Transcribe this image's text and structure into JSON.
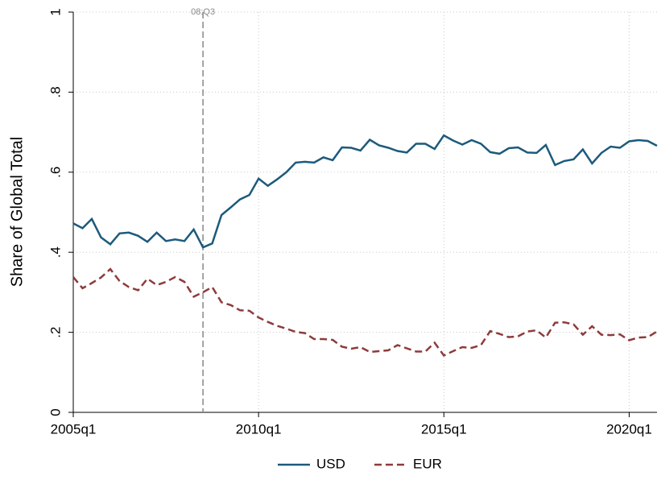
{
  "chart_data": {
    "type": "line",
    "y_label": "Share of Global Total",
    "x": [
      180,
      181,
      182,
      183,
      184,
      185,
      186,
      187,
      188,
      189,
      190,
      191,
      192,
      193,
      194,
      195,
      196,
      197,
      198,
      199,
      200,
      201,
      202,
      203,
      204,
      205,
      206,
      207,
      208,
      209,
      210,
      211,
      212,
      213,
      214,
      215,
      216,
      217,
      218,
      219,
      220,
      221,
      222,
      223,
      224,
      225,
      226,
      227,
      228,
      229,
      230,
      231,
      232,
      233,
      234,
      235,
      236,
      237,
      238,
      239,
      240,
      241,
      242,
      243
    ],
    "series": [
      {
        "name": "USD",
        "color": "#1c5a7c",
        "dash": false,
        "values": [
          0.472,
          0.46,
          0.483,
          0.437,
          0.42,
          0.447,
          0.449,
          0.441,
          0.426,
          0.449,
          0.428,
          0.432,
          0.428,
          0.457,
          0.412,
          0.422,
          0.493,
          0.512,
          0.532,
          0.543,
          0.584,
          0.566,
          0.582,
          0.6,
          0.624,
          0.626,
          0.624,
          0.637,
          0.63,
          0.662,
          0.661,
          0.654,
          0.681,
          0.667,
          0.661,
          0.653,
          0.649,
          0.671,
          0.671,
          0.658,
          0.692,
          0.679,
          0.669,
          0.68,
          0.671,
          0.65,
          0.646,
          0.66,
          0.662,
          0.649,
          0.648,
          0.668,
          0.618,
          0.628,
          0.632,
          0.657,
          0.622,
          0.648,
          0.664,
          0.661,
          0.677,
          0.68,
          0.678,
          0.666
        ]
      },
      {
        "name": "EUR",
        "color": "#8e3b3b",
        "dash": true,
        "values": [
          0.338,
          0.31,
          0.323,
          0.337,
          0.358,
          0.328,
          0.313,
          0.305,
          0.334,
          0.318,
          0.326,
          0.338,
          0.326,
          0.289,
          0.3,
          0.313,
          0.275,
          0.268,
          0.255,
          0.254,
          0.237,
          0.226,
          0.216,
          0.209,
          0.201,
          0.198,
          0.183,
          0.183,
          0.181,
          0.164,
          0.159,
          0.163,
          0.151,
          0.153,
          0.155,
          0.168,
          0.16,
          0.152,
          0.152,
          0.174,
          0.142,
          0.153,
          0.163,
          0.161,
          0.168,
          0.203,
          0.196,
          0.188,
          0.19,
          0.202,
          0.205,
          0.187,
          0.224,
          0.225,
          0.22,
          0.194,
          0.215,
          0.194,
          0.193,
          0.195,
          0.18,
          0.187,
          0.188,
          0.202
        ]
      }
    ],
    "xlim": [
      180,
      243
    ],
    "xticks": [
      {
        "value": 180,
        "label": "2005q1"
      },
      {
        "value": 200,
        "label": "2010q1"
      },
      {
        "value": 220,
        "label": "2015q1"
      },
      {
        "value": 240,
        "label": "2020q1"
      }
    ],
    "ylim": [
      0,
      1
    ],
    "yticks": [
      0,
      {
        "value": 0.2,
        "label": ".2"
      },
      {
        "value": 0.4,
        "label": ".4"
      },
      {
        "value": 0.6,
        "label": ".6"
      },
      {
        "value": 0.8,
        "label": ".8"
      },
      1
    ],
    "grid": true,
    "annotations": [
      {
        "x": 194,
        "label": "08:Q3"
      }
    ],
    "legend": "bottom"
  }
}
